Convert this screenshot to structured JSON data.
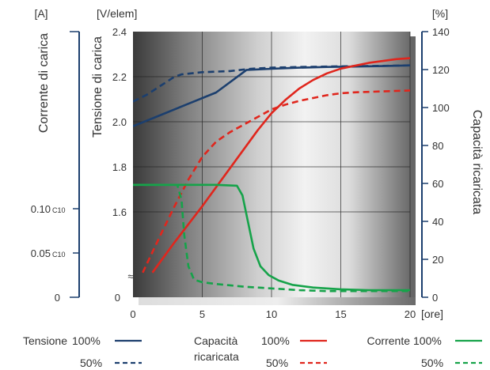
{
  "chart_data": {
    "type": "line",
    "x_unit": "[ore]",
    "x_ticks": [
      0,
      5,
      10,
      15,
      20
    ],
    "xlim": [
      0,
      20
    ],
    "axes": {
      "current": {
        "unit": "[A]",
        "label": "Corrente di carica",
        "ticks": [
          {
            "value": 0,
            "label": "0",
            "sub": ""
          },
          {
            "value": 0.05,
            "label": "0.05",
            "sub": "C10"
          },
          {
            "value": 0.1,
            "label": "0.10",
            "sub": "C10"
          }
        ],
        "range": [
          0,
          0.3
        ]
      },
      "voltage": {
        "unit": "[V/elem]",
        "label": "Tensione di carica",
        "ticks": [
          "1.6",
          "1.8",
          "2.0",
          "2.2",
          "2.4"
        ],
        "range": [
          1.4,
          2.4
        ],
        "zero_label": "0",
        "break_symbol": "≈"
      },
      "capacity": {
        "unit": "[%]",
        "label": "Capacità ricaricata",
        "ticks": [
          0,
          20,
          40,
          60,
          80,
          100,
          120,
          140
        ],
        "range": [
          0,
          140
        ]
      }
    },
    "series": [
      {
        "key": "voltage_100",
        "axis": "voltage",
        "color": "#1c3f6e",
        "dash": false,
        "x": [
          0,
          2,
          4,
          6,
          8.2,
          10,
          12,
          14,
          16,
          18,
          20
        ],
        "y": [
          1.98,
          2.03,
          2.08,
          2.13,
          2.23,
          2.235,
          2.24,
          2.243,
          2.245,
          2.247,
          2.25
        ]
      },
      {
        "key": "voltage_50",
        "axis": "voltage",
        "color": "#1c3f6e",
        "dash": true,
        "x": [
          0,
          1,
          2,
          3,
          3.5,
          5,
          7,
          8.5,
          10,
          12,
          14,
          16,
          18,
          20
        ],
        "y": [
          2.09,
          2.12,
          2.16,
          2.2,
          2.21,
          2.22,
          2.225,
          2.235,
          2.24,
          2.243,
          2.245,
          2.247,
          2.248,
          2.25
        ]
      },
      {
        "key": "capacity_100",
        "axis": "capacity",
        "color": "#e0261d",
        "dash": false,
        "x": [
          1.4,
          3,
          5,
          7,
          9,
          10,
          11,
          12,
          13,
          14,
          15,
          16,
          17,
          18,
          19,
          20
        ],
        "y": [
          13,
          29,
          48,
          68,
          88,
          97,
          104,
          110,
          114.5,
          118,
          120.5,
          122,
          123.5,
          124.5,
          125.5,
          126
        ]
      },
      {
        "key": "capacity_50",
        "axis": "capacity",
        "color": "#e0261d",
        "dash": true,
        "x": [
          0.7,
          2,
          3,
          4,
          5,
          6,
          7,
          8,
          9,
          10,
          11,
          12,
          13,
          14,
          15,
          16,
          18,
          20
        ],
        "y": [
          13,
          33,
          48,
          62,
          74,
          82,
          87,
          91,
          95,
          99,
          101.5,
          103.5,
          105,
          106.5,
          107.5,
          108,
          108.5,
          109
        ]
      },
      {
        "key": "current_100",
        "axis": "current",
        "color": "#16a34a",
        "dash": false,
        "x": [
          0,
          2,
          4,
          6,
          7.5,
          7.9,
          8.3,
          8.7,
          9.2,
          9.8,
          10.5,
          11.5,
          13,
          15,
          17,
          20
        ],
        "y": [
          0.127,
          0.127,
          0.127,
          0.127,
          0.126,
          0.115,
          0.085,
          0.055,
          0.035,
          0.025,
          0.019,
          0.014,
          0.011,
          0.009,
          0.008,
          0.008
        ]
      },
      {
        "key": "current_50",
        "axis": "current",
        "color": "#16a34a",
        "dash": true,
        "x": [
          0,
          2,
          3.2,
          3.5,
          3.7,
          4.0,
          4.4,
          5,
          6,
          8,
          10,
          12,
          14,
          16,
          18,
          20
        ],
        "y": [
          0.127,
          0.127,
          0.127,
          0.11,
          0.07,
          0.035,
          0.02,
          0.017,
          0.015,
          0.012,
          0.01,
          0.008,
          0.007,
          0.007,
          0.007,
          0.007
        ]
      }
    ]
  },
  "legend": {
    "groups": [
      {
        "title": [
          "Tensione"
        ],
        "row1": "100%",
        "row2": "50%",
        "color": "#1c3f6e"
      },
      {
        "title": [
          "Capacità",
          "ricaricata"
        ],
        "row1": "100%",
        "row2": "50%",
        "color": "#e0261d"
      },
      {
        "title": [
          "Corrente"
        ],
        "row1": "100%",
        "row2": "50%",
        "color": "#16a34a"
      }
    ]
  }
}
